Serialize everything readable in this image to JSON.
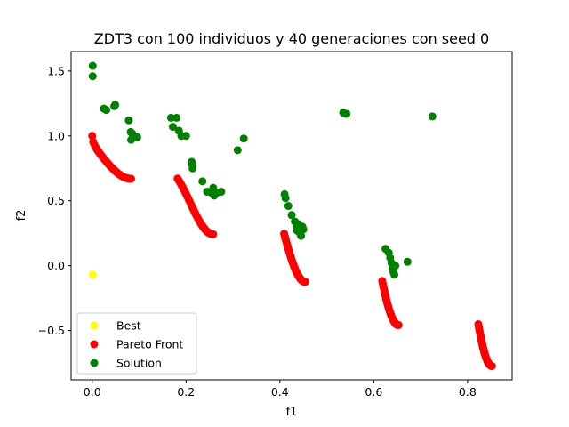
{
  "chart_data": {
    "type": "scatter",
    "title": "ZDT3 con 100 individuos y 40 generaciones con seed 0",
    "xlabel": "f1",
    "ylabel": "f2",
    "xlim": [
      -0.045,
      0.895
    ],
    "ylim": [
      -0.88,
      1.65
    ],
    "xticks": [
      {
        "value": 0.0,
        "label": "0.0"
      },
      {
        "value": 0.2,
        "label": "0.2"
      },
      {
        "value": 0.4,
        "label": "0.4"
      },
      {
        "value": 0.6,
        "label": "0.6"
      },
      {
        "value": 0.8,
        "label": "0.8"
      }
    ],
    "yticks": [
      {
        "value": -0.5,
        "label": "−0.5"
      },
      {
        "value": 0.0,
        "label": "0.0"
      },
      {
        "value": 0.5,
        "label": "0.5"
      },
      {
        "value": 1.0,
        "label": "1.0"
      },
      {
        "value": 1.5,
        "label": "1.5"
      }
    ],
    "grid": false,
    "legend_position": "lower-left",
    "series": [
      {
        "name": "Solution",
        "color": "#008000",
        "points": [
          [
            0.001,
            1.54
          ],
          [
            0.001,
            1.46
          ],
          [
            0.025,
            1.21
          ],
          [
            0.03,
            1.2
          ],
          [
            0.047,
            1.23
          ],
          [
            0.049,
            1.24
          ],
          [
            0.078,
            1.12
          ],
          [
            0.082,
            1.03
          ],
          [
            0.085,
            1.02
          ],
          [
            0.083,
            0.97
          ],
          [
            0.096,
            0.99
          ],
          [
            0.168,
            1.14
          ],
          [
            0.172,
            1.07
          ],
          [
            0.18,
            1.14
          ],
          [
            0.185,
            1.04
          ],
          [
            0.19,
            1.0
          ],
          [
            0.2,
            1.0
          ],
          [
            0.212,
            0.8
          ],
          [
            0.213,
            0.78
          ],
          [
            0.214,
            0.75
          ],
          [
            0.235,
            0.65
          ],
          [
            0.245,
            0.57
          ],
          [
            0.255,
            0.56
          ],
          [
            0.258,
            0.6
          ],
          [
            0.26,
            0.54
          ],
          [
            0.265,
            0.56
          ],
          [
            0.275,
            0.57
          ],
          [
            0.31,
            0.89
          ],
          [
            0.323,
            0.98
          ],
          [
            0.41,
            0.55
          ],
          [
            0.412,
            0.52
          ],
          [
            0.418,
            0.46
          ],
          [
            0.425,
            0.39
          ],
          [
            0.432,
            0.34
          ],
          [
            0.435,
            0.3
          ],
          [
            0.437,
            0.27
          ],
          [
            0.44,
            0.32
          ],
          [
            0.443,
            0.25
          ],
          [
            0.445,
            0.23
          ],
          [
            0.448,
            0.3
          ],
          [
            0.45,
            0.28
          ],
          [
            0.535,
            1.18
          ],
          [
            0.542,
            1.17
          ],
          [
            0.625,
            0.13
          ],
          [
            0.632,
            0.1
          ],
          [
            0.635,
            0.06
          ],
          [
            0.638,
            0.02
          ],
          [
            0.64,
            -0.02
          ],
          [
            0.642,
            -0.05
          ],
          [
            0.644,
            -0.07
          ],
          [
            0.646,
            0.0
          ],
          [
            0.672,
            0.03
          ],
          [
            0.725,
            1.15
          ]
        ]
      },
      {
        "name": "Pareto Front",
        "color": "#ff0000",
        "curves": [
          {
            "f1_min": 0.0,
            "f1_max": 0.083
          },
          {
            "f1_min": 0.182,
            "f1_max": 0.258
          },
          {
            "f1_min": 0.409,
            "f1_max": 0.454
          },
          {
            "f1_min": 0.618,
            "f1_max": 0.653
          },
          {
            "f1_min": 0.823,
            "f1_max": 0.852
          }
        ]
      },
      {
        "name": "Best",
        "color": "#ffff00",
        "points": [
          [
            0.001,
            -0.07
          ]
        ]
      }
    ]
  }
}
